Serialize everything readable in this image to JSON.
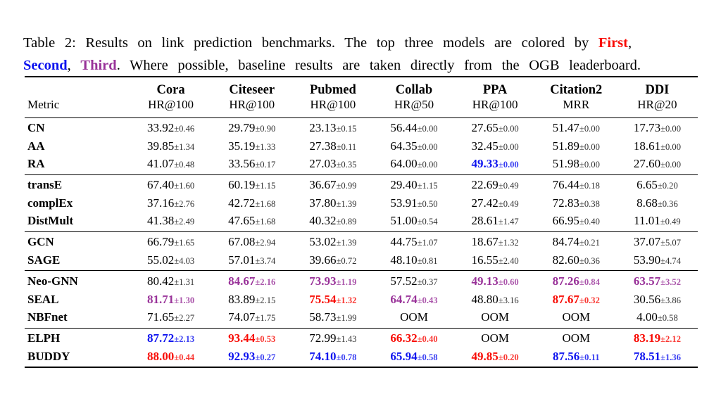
{
  "caption": {
    "part1": "Table 2: Results on link prediction benchmarks. The top three models are colored by ",
    "first": "First",
    "comma1": ",",
    "second": "Second",
    "sep2": ", ",
    "third": "Third",
    "part2": ". Where possible, baseline results are taken directly from the OGB leaderboard."
  },
  "colors": {
    "first": "#f80b04",
    "second": "#0d13ef",
    "third": "#993299"
  },
  "table": {
    "metric_header": "Metric",
    "columns": [
      {
        "name": "Cora",
        "metric": "HR@100"
      },
      {
        "name": "Citeseer",
        "metric": "HR@100"
      },
      {
        "name": "Pubmed",
        "metric": "HR@100"
      },
      {
        "name": "Collab",
        "metric": "HR@50"
      },
      {
        "name": "PPA",
        "metric": "HR@100"
      },
      {
        "name": "Citation2",
        "metric": "MRR"
      },
      {
        "name": "DDI",
        "metric": "HR@20"
      }
    ],
    "groups": [
      {
        "rows": [
          {
            "model": "CN",
            "cells": [
              {
                "v": "33.92",
                "e": "±0.46"
              },
              {
                "v": "29.79",
                "e": "±0.90"
              },
              {
                "v": "23.13",
                "e": "±0.15"
              },
              {
                "v": "56.44",
                "e": "±0.00"
              },
              {
                "v": "27.65",
                "e": "±0.00"
              },
              {
                "v": "51.47",
                "e": "±0.00"
              },
              {
                "v": "17.73",
                "e": "±0.00"
              }
            ]
          },
          {
            "model": "AA",
            "cells": [
              {
                "v": "39.85",
                "e": "±1.34"
              },
              {
                "v": "35.19",
                "e": "±1.33"
              },
              {
                "v": "27.38",
                "e": "±0.11"
              },
              {
                "v": "64.35",
                "e": "±0.00"
              },
              {
                "v": "32.45",
                "e": "±0.00"
              },
              {
                "v": "51.89",
                "e": "±0.00"
              },
              {
                "v": "18.61",
                "e": "±0.00"
              }
            ]
          },
          {
            "model": "RA",
            "cells": [
              {
                "v": "41.07",
                "e": "±0.48"
              },
              {
                "v": "33.56",
                "e": "±0.17"
              },
              {
                "v": "27.03",
                "e": "±0.35"
              },
              {
                "v": "64.00",
                "e": "±0.00"
              },
              {
                "v": "49.33",
                "e": "±0.00",
                "rank": "second"
              },
              {
                "v": "51.98",
                "e": "±0.00"
              },
              {
                "v": "27.60",
                "e": "±0.00"
              }
            ]
          }
        ]
      },
      {
        "rows": [
          {
            "model": "transE",
            "cells": [
              {
                "v": "67.40",
                "e": "±1.60"
              },
              {
                "v": "60.19",
                "e": "±1.15"
              },
              {
                "v": "36.67",
                "e": "±0.99"
              },
              {
                "v": "29.40",
                "e": "±1.15"
              },
              {
                "v": "22.69",
                "e": "±0.49"
              },
              {
                "v": "76.44",
                "e": "±0.18"
              },
              {
                "v": "6.65",
                "e": "±0.20"
              }
            ]
          },
          {
            "model": "complEx",
            "cells": [
              {
                "v": "37.16",
                "e": "±2.76"
              },
              {
                "v": "42.72",
                "e": "±1.68"
              },
              {
                "v": "37.80",
                "e": "±1.39"
              },
              {
                "v": "53.91",
                "e": "±0.50"
              },
              {
                "v": "27.42",
                "e": "±0.49"
              },
              {
                "v": "72.83",
                "e": "±0.38"
              },
              {
                "v": "8.68",
                "e": "±0.36"
              }
            ]
          },
          {
            "model": "DistMult",
            "cells": [
              {
                "v": "41.38",
                "e": "±2.49"
              },
              {
                "v": "47.65",
                "e": "±1.68"
              },
              {
                "v": "40.32",
                "e": "±0.89"
              },
              {
                "v": "51.00",
                "e": "±0.54"
              },
              {
                "v": "28.61",
                "e": "±1.47"
              },
              {
                "v": "66.95",
                "e": "±0.40"
              },
              {
                "v": "11.01",
                "e": "±0.49"
              }
            ]
          }
        ]
      },
      {
        "rows": [
          {
            "model": "GCN",
            "cells": [
              {
                "v": "66.79",
                "e": "±1.65"
              },
              {
                "v": "67.08",
                "e": "±2.94"
              },
              {
                "v": "53.02",
                "e": "±1.39"
              },
              {
                "v": "44.75",
                "e": "±1.07"
              },
              {
                "v": "18.67",
                "e": "±1.32"
              },
              {
                "v": "84.74",
                "e": "±0.21"
              },
              {
                "v": "37.07",
                "e": "±5.07"
              }
            ]
          },
          {
            "model": "SAGE",
            "cells": [
              {
                "v": "55.02",
                "e": "±4.03"
              },
              {
                "v": "57.01",
                "e": "±3.74"
              },
              {
                "v": "39.66",
                "e": "±0.72"
              },
              {
                "v": "48.10",
                "e": "±0.81"
              },
              {
                "v": "16.55",
                "e": "±2.40"
              },
              {
                "v": "82.60",
                "e": "±0.36"
              },
              {
                "v": "53.90",
                "e": "±4.74"
              }
            ]
          }
        ]
      },
      {
        "rows": [
          {
            "model": "Neo-GNN",
            "cells": [
              {
                "v": "80.42",
                "e": "±1.31"
              },
              {
                "v": "84.67",
                "e": "±2.16",
                "rank": "third"
              },
              {
                "v": "73.93",
                "e": "±1.19",
                "rank": "third"
              },
              {
                "v": "57.52",
                "e": "±0.37"
              },
              {
                "v": "49.13",
                "e": "±0.60",
                "rank": "third"
              },
              {
                "v": "87.26",
                "e": "±0.84",
                "rank": "third"
              },
              {
                "v": "63.57",
                "e": "±3.52",
                "rank": "third"
              }
            ]
          },
          {
            "model": "SEAL",
            "cells": [
              {
                "v": "81.71",
                "e": "±1.30",
                "rank": "third"
              },
              {
                "v": "83.89",
                "e": "±2.15"
              },
              {
                "v": "75.54",
                "e": "±1.32",
                "rank": "first"
              },
              {
                "v": "64.74",
                "e": "±0.43",
                "rank": "third"
              },
              {
                "v": "48.80",
                "e": "±3.16"
              },
              {
                "v": "87.67",
                "e": "±0.32",
                "rank": "first"
              },
              {
                "v": "30.56",
                "e": "±3.86"
              }
            ]
          },
          {
            "model": "NBFnet",
            "cells": [
              {
                "v": "71.65",
                "e": "±2.27"
              },
              {
                "v": "74.07",
                "e": "±1.75"
              },
              {
                "v": "58.73",
                "e": "±1.99"
              },
              {
                "v": "OOM"
              },
              {
                "v": "OOM"
              },
              {
                "v": "OOM"
              },
              {
                "v": "4.00",
                "e": "±0.58"
              }
            ]
          }
        ]
      },
      {
        "rows": [
          {
            "model": "ELPH",
            "cells": [
              {
                "v": "87.72",
                "e": "±2.13",
                "rank": "second"
              },
              {
                "v": "93.44",
                "e": "±0.53",
                "rank": "first"
              },
              {
                "v": "72.99",
                "e": "±1.43"
              },
              {
                "v": "66.32",
                "e": "±0.40",
                "rank": "first"
              },
              {
                "v": "OOM"
              },
              {
                "v": "OOM"
              },
              {
                "v": "83.19",
                "e": "±2.12",
                "rank": "first"
              }
            ]
          },
          {
            "model": "BUDDY",
            "cells": [
              {
                "v": "88.00",
                "e": "±0.44",
                "rank": "first"
              },
              {
                "v": "92.93",
                "e": "±0.27",
                "rank": "second"
              },
              {
                "v": "74.10",
                "e": "±0.78",
                "rank": "second"
              },
              {
                "v": "65.94",
                "e": "±0.58",
                "rank": "second"
              },
              {
                "v": "49.85",
                "e": "±0.20",
                "rank": "first"
              },
              {
                "v": "87.56",
                "e": "±0.11",
                "rank": "second"
              },
              {
                "v": "78.51",
                "e": "±1.36",
                "rank": "second"
              }
            ]
          }
        ]
      }
    ]
  }
}
